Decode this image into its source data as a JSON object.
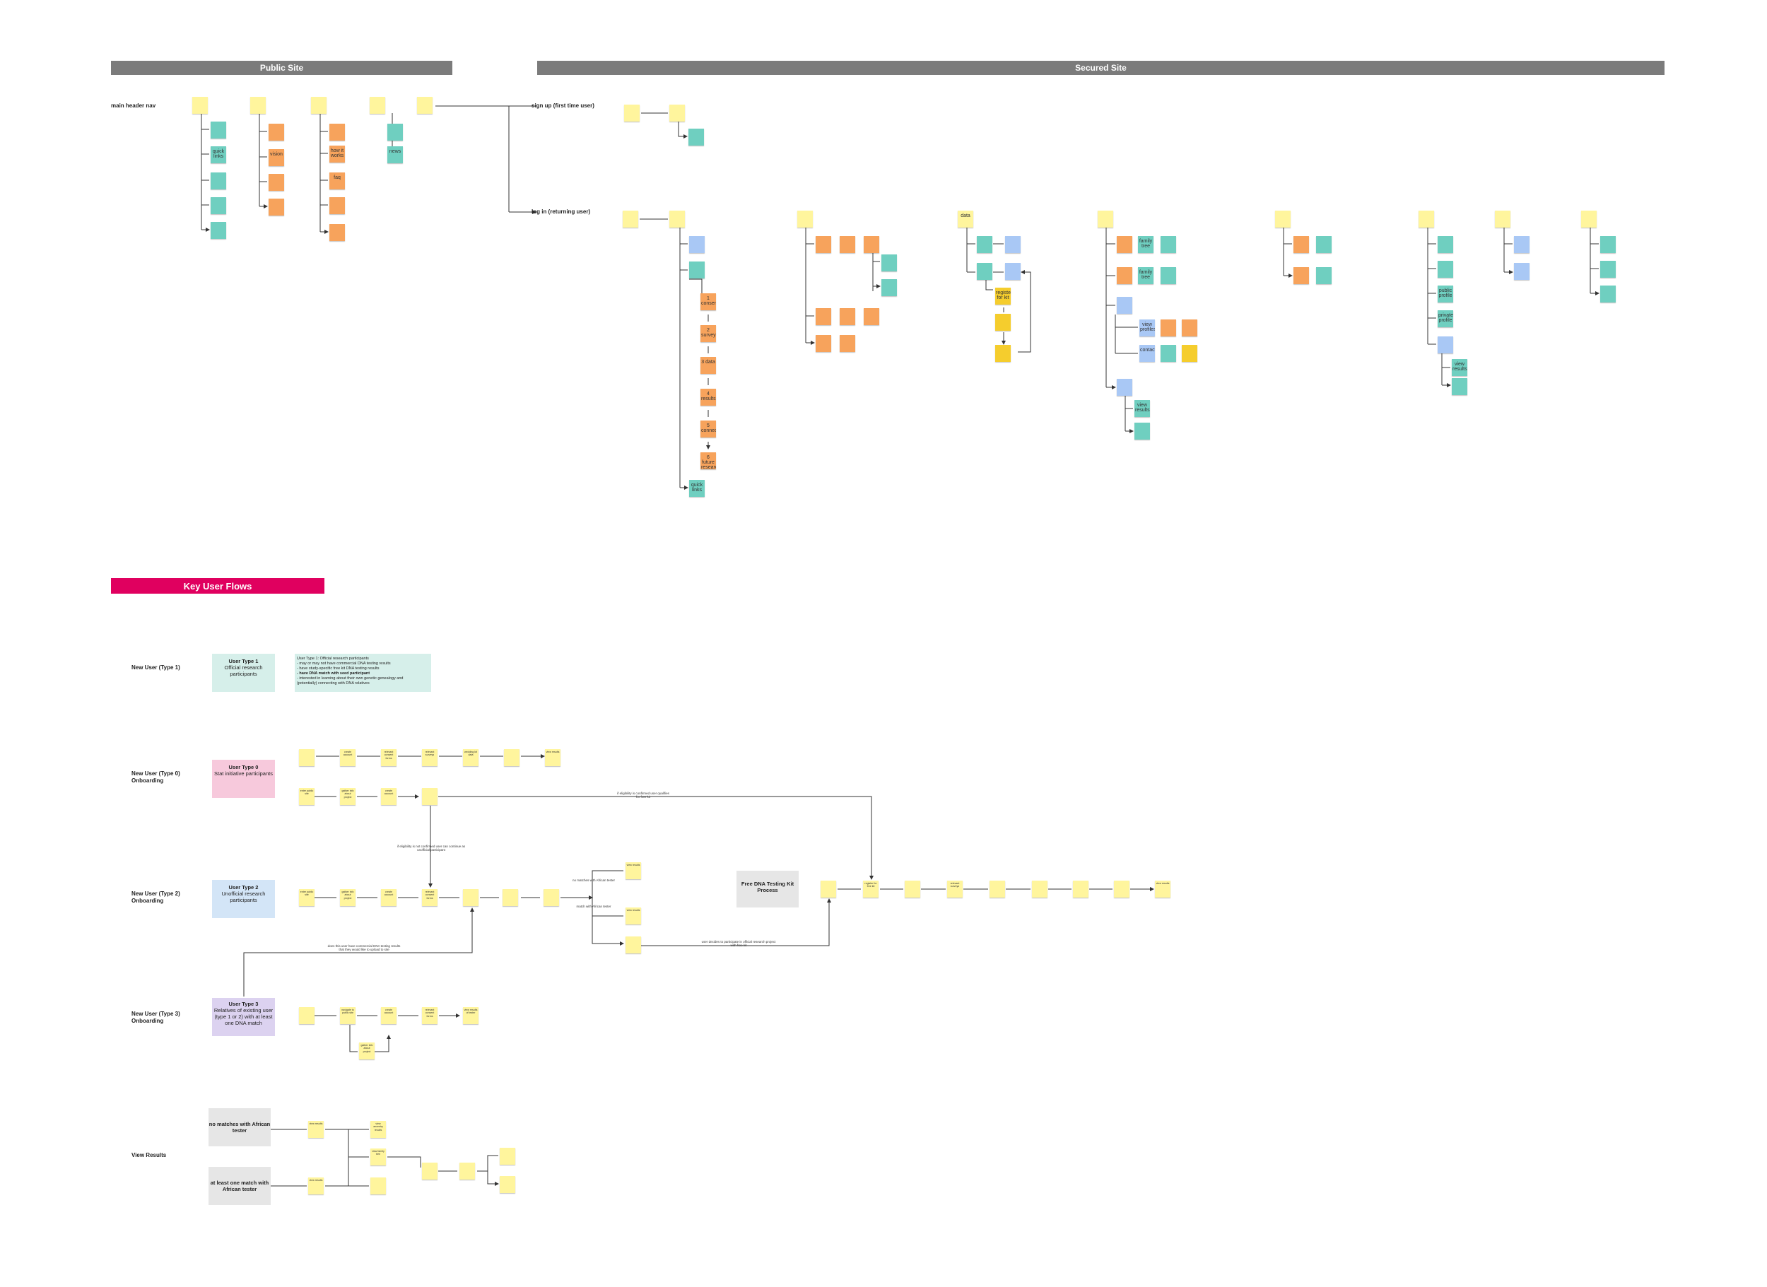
{
  "headers": {
    "public_site": "Public Site",
    "secured_site": "Secured Site",
    "key_user_flows": "Key User Flows"
  },
  "nav": {
    "main_header_nav": "main header nav",
    "sign_up": "sign up (first time user)",
    "log_in": "log in (returning user)"
  },
  "public_columns": {
    "c4_items": [
      "how it works",
      "faq"
    ],
    "c2_items": [
      "quick links"
    ],
    "c3_items": [
      "vision"
    ],
    "c5_items": [
      "news"
    ]
  },
  "secured": {
    "process_steps": [
      "1 consent",
      "2 surveys",
      "3 data",
      "4 results",
      "5 connect",
      "6 future research"
    ],
    "quick_links": "quick links",
    "data_label": "data",
    "register_kit": "register for kit",
    "family_tree_1": "family tree",
    "family_tree_2": "family tree",
    "view_profiles": "view profiles",
    "contact": "contact",
    "view_results_1": "view results",
    "public_profile": "public profile",
    "private_profile": "private profile",
    "view_results_2": "view results"
  },
  "flows": {
    "row_labels": {
      "type1": "New User (Type 1)",
      "type0": "New User (Type 0) Onboarding",
      "type2": "New User (Type 2) Onboarding",
      "type3": "New User (Type 3) Onboarding",
      "view_results": "View Results"
    },
    "type1_box": {
      "title": "User Type 1",
      "sub": "Official research participants"
    },
    "type0_box": {
      "title": "User Type 0",
      "sub": "Stat initiative participants"
    },
    "type2_box": {
      "title": "User Type 2",
      "sub": "Unofficial research participants"
    },
    "type3_box": {
      "title": "User Type 3",
      "sub": "Relatives of existing user (type 1 or 2) with at least one DNA match"
    },
    "type1_note": [
      "User Type 1: Official research participants",
      "- may or may not have commercial DNA testing results",
      "- have study-specific free kit DNA testing results",
      "- have DNA match with seed participant",
      "- interested in learning about their own genetic genealogy and",
      "(potentially) connecting with DNA relatives"
    ],
    "free_kit": "Free DNA Testing Kit Process",
    "row0a": [
      "create account",
      "relevant consent forms",
      "relevant surveys",
      "wedding kit data",
      "view results"
    ],
    "row0b": [
      "enter public site",
      "gather info about project",
      "create account"
    ],
    "row2": [
      "enter public site",
      "gather info about project",
      "create account",
      "relevant consent forms"
    ],
    "row2_right": [
      "view results",
      "view results"
    ],
    "free_kit_steps": [
      "register for free kit",
      "relevant surveys",
      "view results"
    ],
    "row3": [
      "navigate to public site",
      "create account",
      "relevant consent forms",
      "view results of tester"
    ],
    "row3_sub": "gather info about project",
    "vr_boxes": {
      "no_match": "no matches with African tester",
      "one_match": "at least one match with African tester"
    },
    "vr_items": [
      "view results",
      "view results",
      "view ancestry results",
      "view family tree"
    ],
    "annotations": {
      "eligible_confirmed": "if eligibility is confirmed user qualifies for free kit",
      "eligible_not_confirmed": "if eligibility is not confirmed user can continue as unofficial participant",
      "no_matches": "no matches with African tester",
      "match_found": "match with African tester",
      "decides_official": "user decides to participate in official research project with free kit",
      "commercial": "does this user have commercial DNA testing results that they would like to upload to site"
    }
  }
}
